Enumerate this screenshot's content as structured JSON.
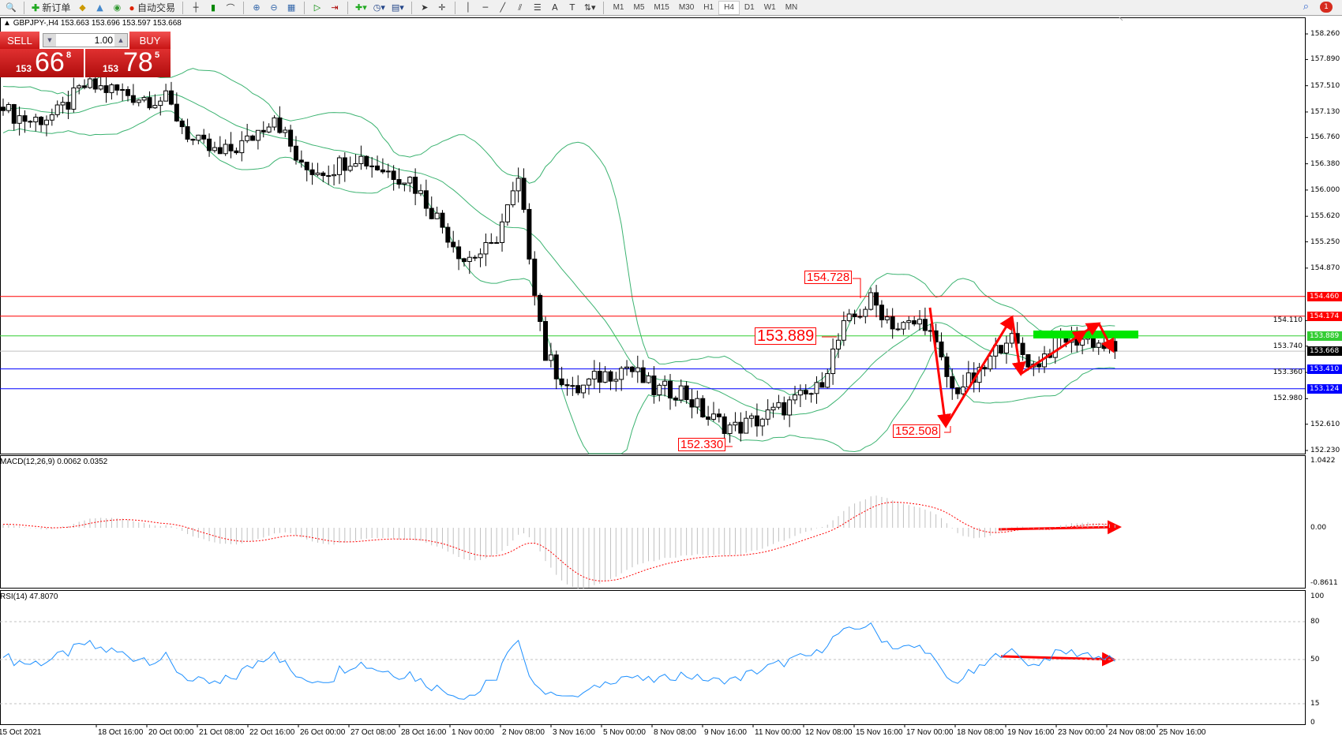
{
  "toolbar": {
    "new_order": "新订单",
    "auto_trading": "自动交易",
    "timeframes": [
      "M1",
      "M5",
      "M15",
      "M30",
      "H1",
      "H4",
      "D1",
      "W1",
      "MN"
    ],
    "active_timeframe": "H4",
    "notification_count": "1"
  },
  "symbol": {
    "info": "GBPJPY-,H4  153.663 153.696 153.597 153.668"
  },
  "one_click": {
    "sell_label": "SELL",
    "buy_label": "BUY",
    "lot": "1.00",
    "sell_small": "153",
    "sell_big": "66",
    "sell_sup": "8",
    "buy_small": "153",
    "buy_big": "78",
    "buy_sup": "5"
  },
  "colors": {
    "bear": "#000000",
    "bull": "#ffffff",
    "bands": "#3cb371",
    "resistance": "#ff0000",
    "support": "#0000ff",
    "level": "#32cd32",
    "macd_hist": "#c0c0c0",
    "macd_signal": "#ff0000",
    "rsi": "#1e90ff",
    "annotation": "#ff0000"
  },
  "chart_data": {
    "type": "candlestick",
    "symbol": "GBPJPY-",
    "timeframe": "H4",
    "price_axis": {
      "ticks": [
        "158.260",
        "157.890",
        "157.510",
        "157.130",
        "156.760",
        "156.380",
        "156.000",
        "155.620",
        "155.250",
        "154.870",
        "154.110",
        "153.740",
        "153.360",
        "152.980",
        "152.610",
        "152.230"
      ],
      "range": [
        152.23,
        158.26
      ]
    },
    "approx_closes_every_5_bars": [
      157.15,
      157.0,
      157.1,
      157.5,
      157.45,
      157.35,
      157.3,
      156.7,
      156.5,
      156.7,
      157.1,
      156.3,
      156.3,
      156.5,
      156.3,
      156.16,
      155.6,
      155.0,
      155.15,
      156.1,
      153.6,
      153.06,
      153.3,
      153.45,
      153.1,
      153.1,
      152.7,
      152.55,
      152.7,
      152.9,
      153.1,
      154.0,
      154.4,
      154.0,
      154.1,
      153.1,
      153.3,
      153.9,
      153.45,
      153.85,
      153.85,
      153.67
    ],
    "indicators": [
      "Bollinger Bands"
    ],
    "horizontal_lines": [
      {
        "price": "154.460",
        "color": "#ff0000"
      },
      {
        "price": "154.174",
        "color": "#ff0000"
      },
      {
        "price": "153.889",
        "color": "#32cd32"
      },
      {
        "price": "153.668",
        "color": "#000000"
      },
      {
        "price": "153.410",
        "color": "#0000ff"
      },
      {
        "price": "153.124",
        "color": "#0000ff"
      }
    ],
    "annotations": [
      {
        "text": "154.728",
        "price": 154.728
      },
      {
        "text": "153.889",
        "price": 153.889
      },
      {
        "text": "152.330",
        "price": 152.33
      },
      {
        "text": "152.508",
        "price": 152.508
      }
    ],
    "x_labels": [
      "15 Oct 2021",
      "18 Oct 16:00",
      "20 Oct 00:00",
      "21 Oct 08:00",
      "22 Oct 16:00",
      "26 Oct 00:00",
      "27 Oct 08:00",
      "28 Oct 16:00",
      "1 Nov 00:00",
      "2 Nov 08:00",
      "3 Nov 16:00",
      "5 Nov 00:00",
      "8 Nov 08:00",
      "9 Nov 16:00",
      "11 Nov 00:00",
      "12 Nov 08:00",
      "15 Nov 16:00",
      "17 Nov 00:00",
      "18 Nov 08:00",
      "19 Nov 16:00",
      "23 Nov 00:00",
      "24 Nov 08:00",
      "25 Nov 16:00"
    ],
    "macd": {
      "label": "MACD(12,26,9) 0.0062 0.0352",
      "ticks": [
        "1.0422",
        "0.00",
        "-0.8611"
      ],
      "range": [
        -0.8611,
        1.0422
      ]
    },
    "rsi": {
      "label": "RSI(14) 47.8070",
      "ticks": [
        "100",
        "80",
        "50",
        "15",
        "0"
      ],
      "levels": [
        80,
        50,
        15
      ]
    }
  }
}
